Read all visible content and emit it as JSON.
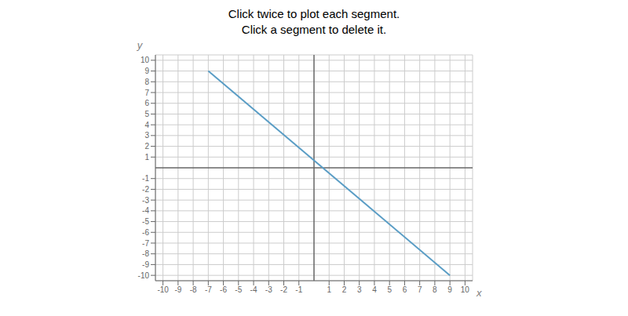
{
  "chart_data": {
    "type": "line",
    "title": "Click twice to plot each segment.",
    "subtitle": "Click a segment to delete it.",
    "x_label": "x",
    "y_label": "y",
    "x": [
      -7,
      9
    ],
    "values": [
      9,
      -10
    ],
    "color": "#5a9dc5",
    "xlim": [
      -10.5,
      10.5
    ],
    "ylim": [
      -10.5,
      10.5
    ],
    "xticks": [
      -10,
      -9,
      -8,
      -7,
      -6,
      -5,
      -4,
      -3,
      -2,
      -1,
      1,
      2,
      3,
      4,
      5,
      6,
      7,
      8,
      9,
      10
    ],
    "yticks": [
      -10,
      -9,
      -8,
      -7,
      -6,
      -5,
      -4,
      -3,
      -2,
      -1,
      1,
      2,
      3,
      4,
      5,
      6,
      7,
      8,
      9,
      10
    ],
    "grid": true
  }
}
